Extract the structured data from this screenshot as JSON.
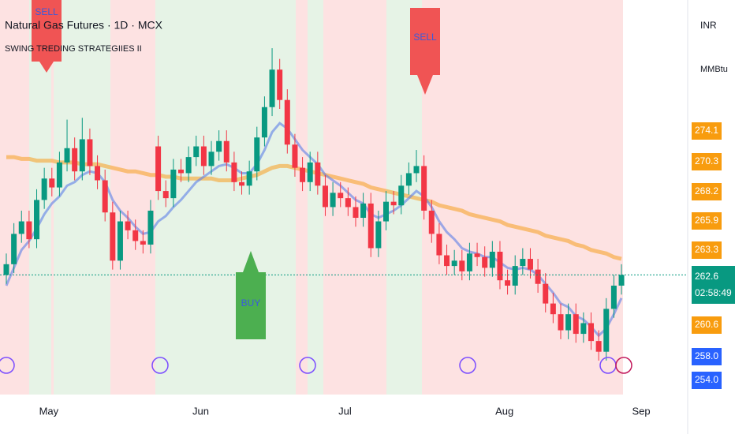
{
  "chart_data": {
    "type": "candlestick",
    "title": "Natural Gas Futures · 1D · MCX",
    "subtitle": "SWING TREDING STRATEGIIES II",
    "currency": "INR",
    "unit": "MMBtu",
    "signals": [
      "SELL",
      "BUY",
      "SELL"
    ],
    "categories": [
      null,
      null,
      null,
      "May",
      null,
      null,
      null,
      null,
      null,
      null,
      null,
      null,
      null,
      null,
      null,
      null,
      null,
      null,
      null,
      null,
      null,
      null,
      null,
      "Jun",
      null,
      null,
      null,
      null,
      null,
      null,
      null,
      null,
      null,
      null,
      null,
      null,
      null,
      null,
      null,
      null,
      null,
      null,
      "Jul",
      null,
      null,
      null,
      null,
      null,
      null,
      null,
      null,
      null,
      null,
      null,
      null,
      null,
      null,
      null,
      null,
      null,
      null,
      null,
      null,
      "Aug",
      null,
      null,
      null,
      null,
      null,
      null,
      null,
      null,
      null,
      null,
      null,
      null,
      null,
      null,
      null,
      null,
      null,
      "Sep"
    ],
    "open": [
      262.6,
      263.2,
      264.9,
      265.6,
      264.6,
      266.8,
      268.0,
      267.5,
      268.9,
      269.7,
      268.4,
      270.2,
      268.7,
      267.9,
      266.1,
      263.4,
      265.6,
      265.1,
      264.5,
      264.3,
      269.8,
      267.3,
      266.9,
      268.5,
      268.3,
      269.2,
      269.8,
      268.7,
      269.5,
      270.1,
      268.9,
      267.8,
      267.6,
      268.4,
      270.3,
      272.0,
      274.1,
      272.4,
      269.9,
      268.6,
      267.8,
      268.9,
      267.6,
      266.4,
      267.2,
      266.9,
      266.4,
      265.8,
      266.6,
      264.1,
      265.6,
      266.7,
      266.5,
      267.6,
      268.3,
      268.7,
      266.2,
      264.9,
      263.7,
      263.1,
      263.4,
      262.8,
      263.8,
      263.6,
      263.0,
      263.9,
      262.3,
      262.0,
      263.1,
      263.5,
      262.9,
      262.1,
      261.0,
      260.4,
      259.5,
      260.4,
      259.3,
      259.9,
      258.9,
      258.3,
      260.7,
      262.0
    ],
    "high": [
      263.8,
      265.5,
      266.2,
      266.2,
      267.4,
      268.6,
      268.6,
      269.5,
      271.3,
      270.3,
      271.4,
      270.8,
      269.3,
      268.5,
      266.7,
      266.2,
      266.2,
      265.7,
      265.1,
      266.8,
      270.4,
      267.9,
      269.1,
      269.1,
      269.8,
      270.4,
      270.4,
      270.1,
      270.7,
      270.7,
      269.5,
      268.4,
      269.0,
      270.9,
      272.6,
      275.3,
      274.7,
      273.0,
      270.5,
      269.2,
      269.5,
      269.5,
      268.2,
      267.8,
      267.8,
      267.5,
      267.0,
      267.2,
      267.2,
      266.2,
      267.3,
      267.3,
      268.2,
      268.9,
      269.6,
      269.3,
      266.8,
      265.5,
      264.3,
      264.0,
      264.0,
      264.4,
      264.4,
      264.2,
      264.5,
      264.5,
      262.9,
      263.7,
      264.1,
      264.1,
      263.5,
      262.7,
      261.6,
      261.0,
      261.0,
      261.0,
      260.5,
      260.5,
      259.5,
      261.3,
      262.6,
      263.2
    ],
    "low": [
      262.1,
      262.7,
      264.4,
      264.1,
      264.1,
      266.3,
      267.0,
      267.0,
      268.4,
      267.9,
      267.9,
      268.2,
      267.4,
      265.6,
      262.9,
      262.9,
      264.6,
      264.0,
      263.8,
      263.8,
      266.8,
      266.4,
      266.4,
      267.8,
      267.8,
      268.7,
      268.2,
      268.2,
      269.0,
      268.4,
      267.3,
      267.1,
      267.1,
      267.9,
      269.8,
      271.5,
      271.9,
      269.4,
      268.1,
      267.3,
      267.3,
      267.1,
      265.9,
      265.9,
      266.4,
      265.9,
      265.3,
      265.3,
      263.6,
      263.6,
      265.1,
      266.0,
      266.0,
      267.1,
      267.8,
      265.7,
      264.4,
      263.2,
      262.6,
      262.6,
      262.3,
      262.3,
      263.1,
      262.5,
      262.5,
      261.8,
      261.5,
      261.5,
      262.6,
      262.4,
      261.6,
      260.5,
      259.9,
      259.0,
      259.0,
      258.8,
      258.8,
      258.4,
      257.8,
      257.8,
      260.2,
      261.5
    ],
    "close": [
      263.2,
      264.9,
      265.6,
      264.6,
      266.8,
      268.0,
      267.5,
      268.9,
      269.7,
      268.4,
      270.2,
      268.7,
      267.9,
      266.1,
      263.4,
      265.6,
      265.1,
      264.5,
      264.3,
      266.2,
      267.3,
      266.9,
      268.5,
      268.3,
      269.2,
      269.8,
      268.7,
      269.5,
      270.1,
      268.9,
      267.8,
      267.6,
      268.4,
      270.3,
      272.0,
      274.1,
      272.4,
      269.9,
      268.6,
      267.8,
      268.9,
      267.6,
      266.4,
      267.2,
      266.9,
      266.4,
      265.8,
      266.6,
      264.1,
      265.6,
      266.7,
      266.5,
      267.6,
      268.3,
      268.7,
      266.2,
      264.9,
      263.7,
      263.1,
      263.4,
      262.8,
      263.8,
      263.6,
      263.0,
      263.9,
      262.3,
      262.0,
      263.1,
      263.5,
      262.9,
      262.1,
      261.0,
      260.4,
      259.5,
      260.4,
      259.3,
      259.9,
      258.9,
      258.3,
      260.7,
      262.0,
      262.6
    ],
    "up_color": "#089981",
    "down_color": "#f23645",
    "lines": [
      {
        "color": "#f7a531",
        "values": [
          269.2,
          269.2,
          269.1,
          269.1,
          269.0,
          269.0,
          269.0,
          268.9,
          268.9,
          268.9,
          268.8,
          268.8,
          268.8,
          268.7,
          268.6,
          268.5,
          268.4,
          268.4,
          268.3,
          268.2,
          268.2,
          268.1,
          268.1,
          268.0,
          268.0,
          268.0,
          268.0,
          268.0,
          267.9,
          267.9,
          267.9,
          268.0,
          268.1,
          268.2,
          268.4,
          268.6,
          268.7,
          268.7,
          268.6,
          268.5,
          268.4,
          268.3,
          268.2,
          268.1,
          268.0,
          267.9,
          267.8,
          267.7,
          267.5,
          267.4,
          267.3,
          267.2,
          267.1,
          267.0,
          266.9,
          266.8,
          266.7,
          266.5,
          266.4,
          266.3,
          266.2,
          266.0,
          265.9,
          265.8,
          265.7,
          265.6,
          265.4,
          265.3,
          265.2,
          265.1,
          265.0,
          264.8,
          264.7,
          264.6,
          264.5,
          264.3,
          264.2,
          264.0,
          263.9,
          263.8,
          263.6,
          263.5
        ]
      },
      {
        "color": "#5b7fe8",
        "values": [
          262.0,
          263.0,
          264.0,
          264.5,
          265.2,
          266.0,
          266.6,
          267.0,
          267.6,
          267.8,
          268.2,
          268.4,
          268.3,
          267.8,
          266.8,
          266.2,
          265.8,
          265.3,
          264.9,
          265.0,
          265.6,
          265.9,
          266.4,
          266.8,
          267.3,
          267.8,
          268.1,
          268.4,
          268.7,
          268.8,
          268.6,
          268.3,
          268.3,
          268.8,
          269.6,
          270.6,
          271.1,
          270.8,
          270.2,
          269.6,
          269.2,
          268.8,
          268.2,
          267.9,
          267.6,
          267.2,
          266.8,
          266.6,
          266.0,
          265.8,
          266.0,
          266.2,
          266.5,
          266.9,
          267.3,
          267.0,
          266.4,
          265.6,
          265.0,
          264.6,
          264.1,
          263.9,
          263.8,
          263.6,
          263.6,
          263.3,
          263.0,
          262.9,
          263.0,
          262.9,
          262.6,
          262.1,
          261.6,
          261.0,
          260.8,
          260.3,
          260.1,
          259.7,
          259.2,
          259.6,
          260.4,
          261.3
        ]
      }
    ],
    "ylim": [
      255.9,
      278.0
    ],
    "price_labels": [
      {
        "value": 274.1,
        "color": "#f89c0e"
      },
      {
        "value": 270.3,
        "color": "#f89c0e"
      },
      {
        "value": 268.2,
        "color": "#f89c0e"
      },
      {
        "value": 265.9,
        "color": "#f89c0e"
      },
      {
        "value": 263.3,
        "color": "#f89c0e"
      },
      {
        "value": 260.6,
        "color": "#f89c0e"
      },
      {
        "value": 258,
        "label": "258.0",
        "color": "#2962ff"
      },
      {
        "value": 254,
        "label": "254.0",
        "color": "#2962ff"
      }
    ],
    "last_price": {
      "value": 262.6,
      "countdown": "02:58:49",
      "color": "#089981"
    }
  }
}
